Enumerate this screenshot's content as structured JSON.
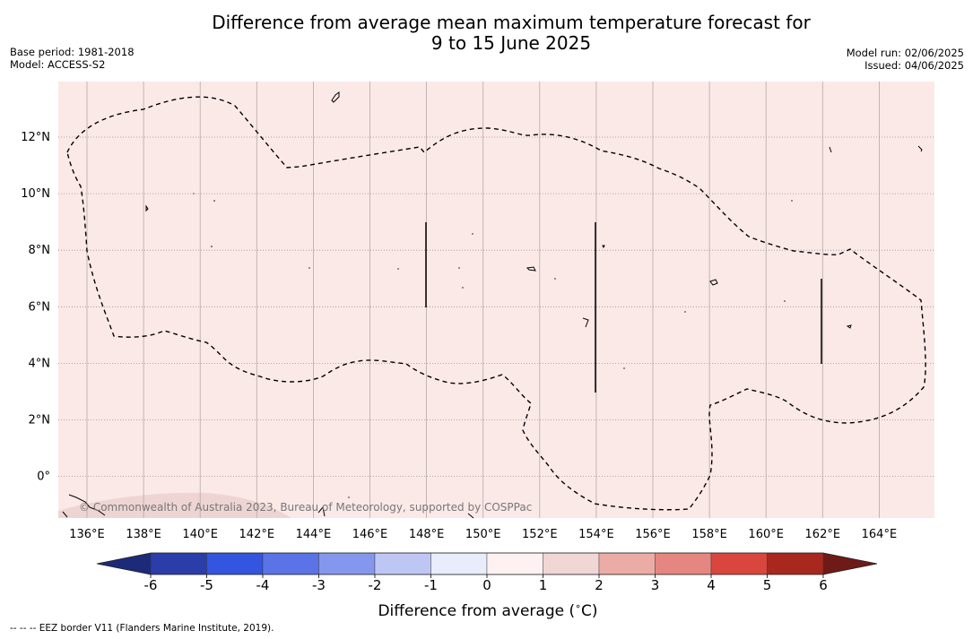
{
  "header": {
    "title_line1": "Difference from average mean maximum temperature forecast for",
    "title_line2": "9 to 15 June 2025",
    "base_period": "Base period: 1981-2018",
    "model": "Model: ACCESS-S2",
    "model_run": "Model run: 02/06/2025",
    "issued": "Issued: 04/06/2025"
  },
  "map": {
    "background_color": "#fbe9e8",
    "lon_ticks": [
      "136°E",
      "138°E",
      "140°E",
      "142°E",
      "144°E",
      "146°E",
      "148°E",
      "150°E",
      "152°E",
      "154°E",
      "156°E",
      "158°E",
      "160°E",
      "162°E",
      "164°E"
    ],
    "lat_ticks": [
      "12°N",
      "10°N",
      "8°N",
      "6°N",
      "4°N",
      "2°N",
      "0°"
    ],
    "copyright": "© Commonwealth of Australia 2023, Bureau of Meteorology, supported by COSPPac"
  },
  "colorbar": {
    "label": "Difference from average ($^\\circ$C)",
    "label_text": "Difference from average (",
    "label_unit": "C)",
    "ticks": [
      "-6",
      "-5",
      "-4",
      "-3",
      "-2",
      "-1",
      "0",
      "1",
      "2",
      "3",
      "4",
      "5",
      "6"
    ],
    "colors": [
      "#2a3da8",
      "#3355e0",
      "#5a73e6",
      "#8597ec",
      "#bec7f4",
      "#e8ecfb",
      "#fdf1f1",
      "#f0d6d5",
      "#ecaca6",
      "#e58780",
      "#d9463d",
      "#a8281f"
    ],
    "under_color": "#1d2a7a",
    "over_color": "#6e1a16"
  },
  "footnote": "-- -- -- EEZ border V11 (Flanders Marine Institute, 2019)."
}
